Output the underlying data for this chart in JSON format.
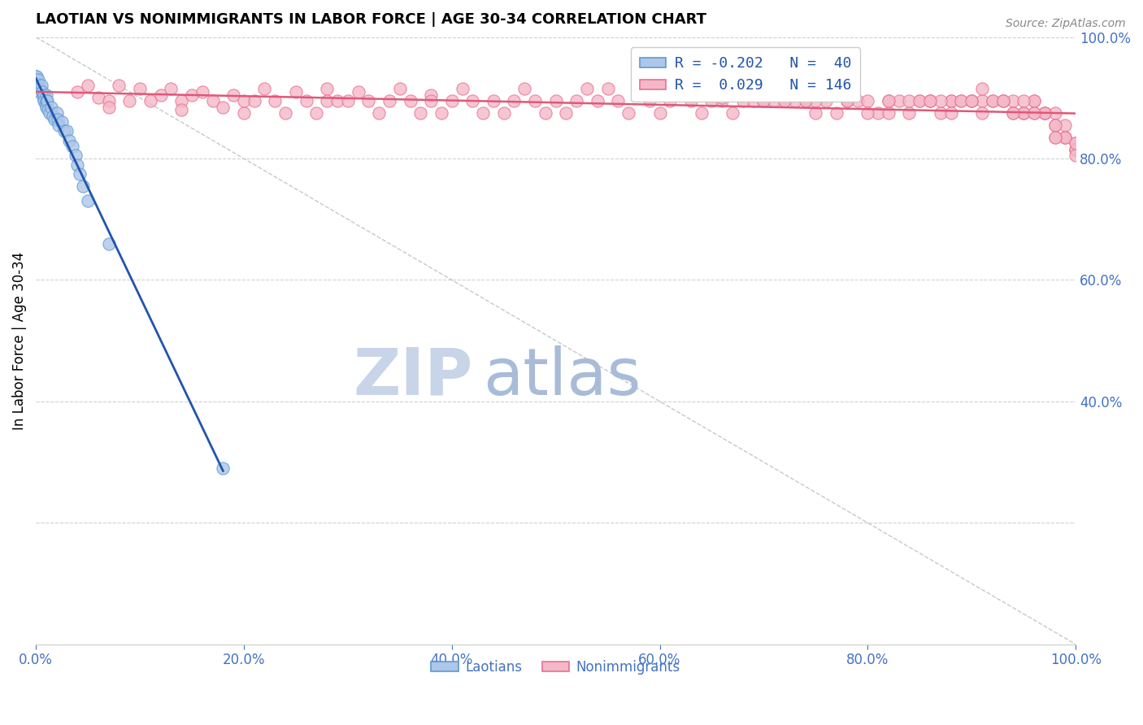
{
  "title": "LAOTIAN VS NONIMMIGRANTS IN LABOR FORCE | AGE 30-34 CORRELATION CHART",
  "source_text": "Source: ZipAtlas.com",
  "ylabel": "In Labor Force | Age 30-34",
  "xlim": [
    0,
    1
  ],
  "ylim": [
    0,
    1
  ],
  "xticks": [
    0.0,
    0.2,
    0.4,
    0.6,
    0.8,
    1.0
  ],
  "xticklabels": [
    "0.0%",
    "20.0%",
    "40.0%",
    "60.0%",
    "80.0%",
    "100.0%"
  ],
  "yticks_right": [
    0.4,
    0.6,
    0.8,
    1.0
  ],
  "yticklabels_right": [
    "40.0%",
    "60.0%",
    "80.0%",
    "100.0%"
  ],
  "yticks_grid": [
    0.2,
    0.4,
    0.6,
    0.8,
    1.0
  ],
  "laotian_color": "#aec6e8",
  "laotian_edge": "#5b9bd5",
  "nonimmigrant_color": "#f4b8c8",
  "nonimmigrant_edge": "#e87090",
  "blue_line_color": "#2255aa",
  "pink_line_color": "#e05878",
  "diagonal_color": "#c8c8c8",
  "background_color": "#ffffff",
  "grid_color": "#d0d0d0",
  "title_color": "#000000",
  "source_color": "#888888",
  "tick_color": "#4472c4",
  "ylabel_color": "#000000",
  "legend_color": "#2255aa",
  "watermark_zip_color": "#c8d4e8",
  "watermark_atlas_color": "#a8bcd8",
  "laotian_x": [
    0.0,
    0.0,
    0.0,
    0.0,
    0.0,
    0.001,
    0.002,
    0.003,
    0.003,
    0.004,
    0.005,
    0.006,
    0.007,
    0.008,
    0.008,
    0.009,
    0.01,
    0.01,
    0.01,
    0.011,
    0.012,
    0.013,
    0.015,
    0.016,
    0.018,
    0.02,
    0.021,
    0.022,
    0.025,
    0.027,
    0.03,
    0.032,
    0.035,
    0.038,
    0.04,
    0.042,
    0.045,
    0.05,
    0.07,
    0.18
  ],
  "laotian_y": [
    0.935,
    0.93,
    0.93,
    0.93,
    0.925,
    0.935,
    0.93,
    0.92,
    0.915,
    0.91,
    0.92,
    0.91,
    0.9,
    0.905,
    0.895,
    0.89,
    0.905,
    0.895,
    0.885,
    0.895,
    0.88,
    0.875,
    0.885,
    0.87,
    0.865,
    0.875,
    0.865,
    0.855,
    0.86,
    0.845,
    0.845,
    0.83,
    0.82,
    0.805,
    0.79,
    0.775,
    0.755,
    0.73,
    0.66,
    0.29
  ],
  "nonimmigrant_x": [
    0.04,
    0.05,
    0.06,
    0.07,
    0.07,
    0.08,
    0.09,
    0.1,
    0.11,
    0.12,
    0.13,
    0.14,
    0.14,
    0.15,
    0.16,
    0.17,
    0.18,
    0.19,
    0.2,
    0.2,
    0.21,
    0.22,
    0.23,
    0.24,
    0.25,
    0.26,
    0.27,
    0.28,
    0.28,
    0.29,
    0.3,
    0.31,
    0.32,
    0.33,
    0.34,
    0.35,
    0.36,
    0.37,
    0.38,
    0.38,
    0.39,
    0.4,
    0.41,
    0.42,
    0.43,
    0.44,
    0.45,
    0.46,
    0.47,
    0.48,
    0.49,
    0.5,
    0.51,
    0.52,
    0.53,
    0.54,
    0.55,
    0.56,
    0.57,
    0.58,
    0.59,
    0.6,
    0.61,
    0.62,
    0.63,
    0.64,
    0.65,
    0.66,
    0.67,
    0.68,
    0.69,
    0.7,
    0.71,
    0.72,
    0.73,
    0.74,
    0.75,
    0.76,
    0.77,
    0.78,
    0.79,
    0.8,
    0.81,
    0.82,
    0.83,
    0.84,
    0.85,
    0.86,
    0.87,
    0.88,
    0.88,
    0.89,
    0.9,
    0.91,
    0.92,
    0.93,
    0.94,
    0.95,
    0.95,
    0.96,
    0.96,
    0.97,
    0.97,
    0.98,
    0.98,
    0.99,
    0.99,
    1.0,
    1.0,
    1.0,
    0.6,
    0.63,
    0.66,
    0.69,
    0.72,
    0.75,
    0.78,
    0.8,
    0.82,
    0.84,
    0.86,
    0.88,
    0.9,
    0.92,
    0.94,
    0.96,
    0.98,
    1.0,
    0.91,
    0.93,
    0.95,
    0.97,
    0.99,
    0.85,
    0.87,
    0.89,
    0.91,
    0.93,
    0.95,
    0.97,
    0.99,
    0.7,
    0.74,
    0.78,
    0.82,
    0.86,
    0.9,
    0.94,
    0.98,
    1.0,
    0.96,
    0.98,
    1.0
  ],
  "nonimmigrant_y": [
    0.91,
    0.92,
    0.9,
    0.895,
    0.885,
    0.92,
    0.895,
    0.915,
    0.895,
    0.905,
    0.915,
    0.895,
    0.88,
    0.905,
    0.91,
    0.895,
    0.885,
    0.905,
    0.895,
    0.875,
    0.895,
    0.915,
    0.895,
    0.875,
    0.91,
    0.895,
    0.875,
    0.915,
    0.895,
    0.895,
    0.895,
    0.91,
    0.895,
    0.875,
    0.895,
    0.915,
    0.895,
    0.875,
    0.905,
    0.895,
    0.875,
    0.895,
    0.915,
    0.895,
    0.875,
    0.895,
    0.875,
    0.895,
    0.915,
    0.895,
    0.875,
    0.895,
    0.875,
    0.895,
    0.915,
    0.895,
    0.915,
    0.895,
    0.875,
    0.915,
    0.895,
    0.875,
    0.895,
    0.915,
    0.895,
    0.875,
    0.895,
    0.895,
    0.875,
    0.895,
    0.895,
    0.895,
    0.895,
    0.895,
    0.895,
    0.895,
    0.875,
    0.895,
    0.875,
    0.895,
    0.895,
    0.895,
    0.875,
    0.895,
    0.895,
    0.875,
    0.895,
    0.895,
    0.875,
    0.895,
    0.895,
    0.895,
    0.895,
    0.895,
    0.895,
    0.895,
    0.895,
    0.875,
    0.875,
    0.895,
    0.895,
    0.875,
    0.875,
    0.875,
    0.855,
    0.855,
    0.835,
    0.825,
    0.815,
    0.815,
    0.93,
    0.91,
    0.9,
    0.91,
    0.895,
    0.895,
    0.895,
    0.875,
    0.895,
    0.895,
    0.895,
    0.875,
    0.895,
    0.895,
    0.875,
    0.875,
    0.855,
    0.815,
    0.915,
    0.895,
    0.895,
    0.875,
    0.835,
    0.895,
    0.895,
    0.895,
    0.875,
    0.895,
    0.875,
    0.875,
    0.835,
    0.895,
    0.895,
    0.895,
    0.875,
    0.895,
    0.895,
    0.875,
    0.835,
    0.825,
    0.875,
    0.835,
    0.805
  ]
}
